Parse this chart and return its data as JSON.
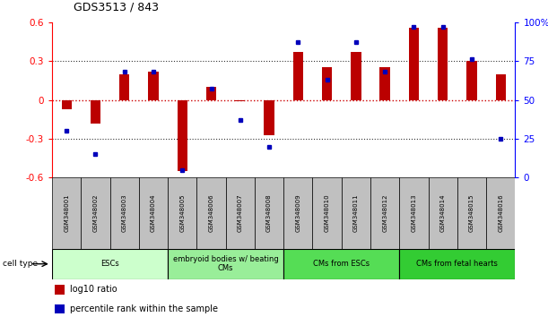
{
  "title": "GDS3513 / 843",
  "samples": [
    "GSM348001",
    "GSM348002",
    "GSM348003",
    "GSM348004",
    "GSM348005",
    "GSM348006",
    "GSM348007",
    "GSM348008",
    "GSM348009",
    "GSM348010",
    "GSM348011",
    "GSM348012",
    "GSM348013",
    "GSM348014",
    "GSM348015",
    "GSM348016"
  ],
  "log10_ratio": [
    -0.07,
    -0.18,
    0.2,
    0.22,
    -0.55,
    0.1,
    -0.01,
    -0.27,
    0.37,
    0.25,
    0.37,
    0.25,
    0.56,
    0.56,
    0.3,
    0.2
  ],
  "percentile_rank": [
    30,
    15,
    68,
    68,
    5,
    57,
    37,
    20,
    87,
    63,
    87,
    68,
    97,
    97,
    76,
    25
  ],
  "cell_type_groups": [
    {
      "label": "ESCs",
      "start": 0,
      "end": 3,
      "color": "#ccffcc"
    },
    {
      "label": "embryoid bodies w/ beating\nCMs",
      "start": 4,
      "end": 7,
      "color": "#99ee99"
    },
    {
      "label": "CMs from ESCs",
      "start": 8,
      "end": 11,
      "color": "#55dd55"
    },
    {
      "label": "CMs from fetal hearts",
      "start": 12,
      "end": 15,
      "color": "#33cc33"
    }
  ],
  "ylim_left": [
    -0.6,
    0.6
  ],
  "ylim_right": [
    0,
    100
  ],
  "yticks_left": [
    -0.6,
    -0.3,
    0.0,
    0.3,
    0.6
  ],
  "yticks_right": [
    0,
    25,
    50,
    75,
    100
  ],
  "ytick_labels_left": [
    "-0.6",
    "-0.3",
    "0",
    "0.3",
    "0.6"
  ],
  "ytick_labels_right": [
    "0",
    "25",
    "50",
    "75",
    "100%"
  ],
  "bar_color": "#bb0000",
  "dot_color": "#0000bb",
  "hline_color": "#cc0000",
  "grid_color": "#333333",
  "sample_box_color": "#c0c0c0",
  "background_color": "#ffffff",
  "bar_width": 0.35
}
